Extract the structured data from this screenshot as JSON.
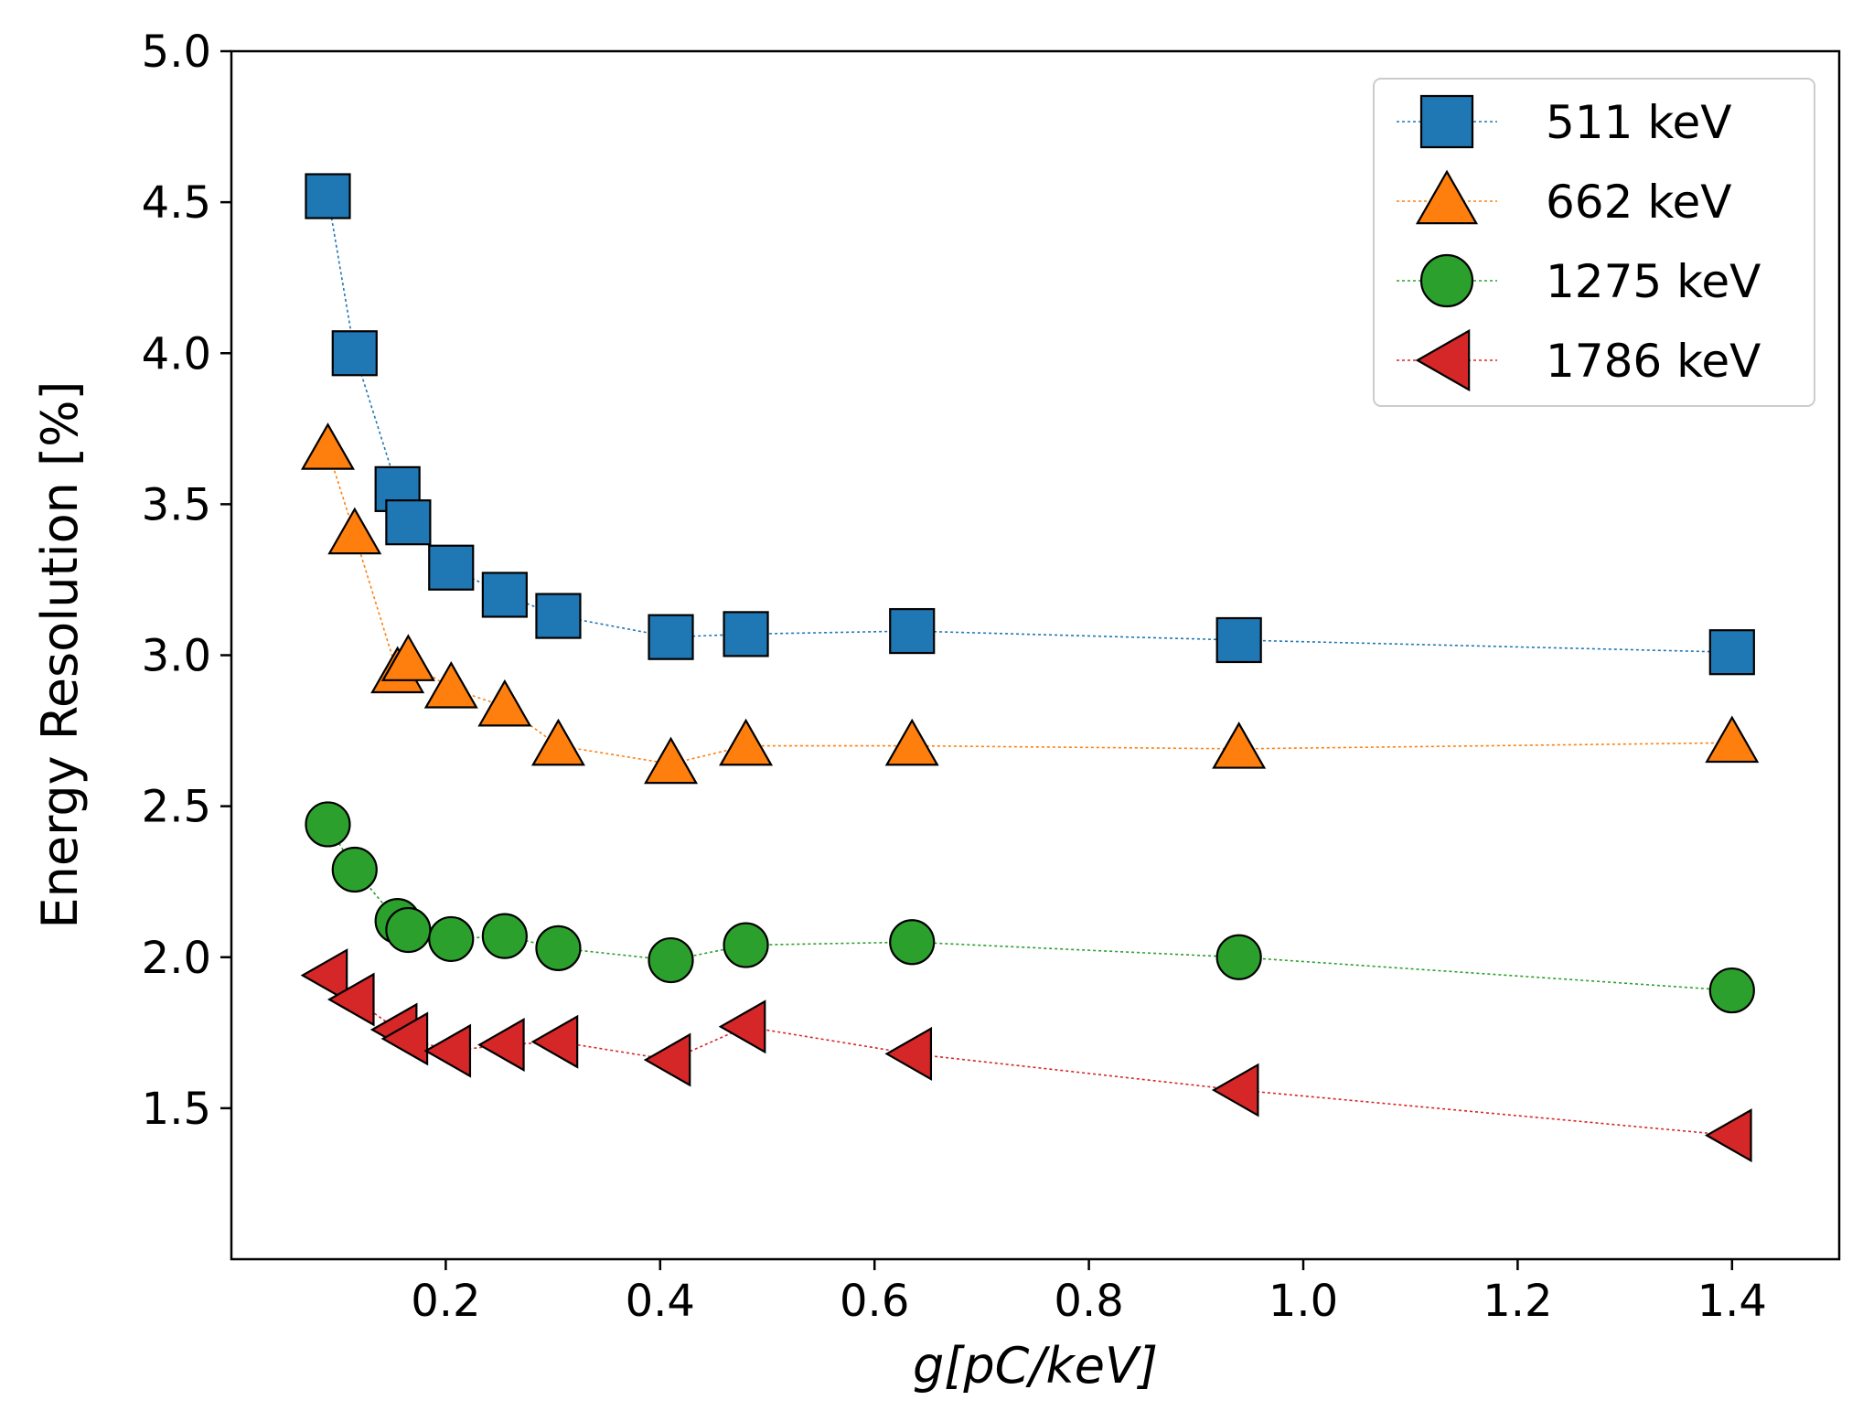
{
  "chart_data": {
    "type": "scatter",
    "title": "",
    "xlabel": "g[pC/keV]",
    "ylabel": "Energy Resolution [%]",
    "xlim": [
      0.0,
      1.5
    ],
    "ylim": [
      1.0,
      5.0
    ],
    "x_ticks": [
      0.2,
      0.4,
      0.6,
      0.8,
      1.0,
      1.2,
      1.4
    ],
    "x_tick_labels": [
      "0.2",
      "0.4",
      "0.6",
      "0.8",
      "1.0",
      "1.2",
      "1.4"
    ],
    "y_ticks": [
      1.5,
      2.0,
      2.5,
      3.0,
      3.5,
      4.0,
      4.5,
      5.0
    ],
    "y_tick_labels": [
      "1.5",
      "2.0",
      "2.5",
      "3.0",
      "3.5",
      "4.0",
      "4.5",
      "5.0"
    ],
    "grid": false,
    "legend_position": "top-right",
    "series": [
      {
        "name": "511 keV",
        "marker": "square",
        "color": "#1f77b4",
        "x": [
          0.09,
          0.115,
          0.155,
          0.165,
          0.205,
          0.255,
          0.305,
          0.41,
          0.48,
          0.635,
          0.94,
          1.4
        ],
        "y": [
          4.52,
          4.0,
          3.55,
          3.44,
          3.29,
          3.2,
          3.13,
          3.06,
          3.07,
          3.08,
          3.05,
          3.01
        ]
      },
      {
        "name": "662 keV",
        "marker": "triangle-up",
        "color": "#ff7f0e",
        "x": [
          0.09,
          0.115,
          0.155,
          0.165,
          0.205,
          0.255,
          0.305,
          0.41,
          0.48,
          0.635,
          0.94,
          1.4
        ],
        "y": [
          3.68,
          3.4,
          2.94,
          2.98,
          2.89,
          2.83,
          2.7,
          2.64,
          2.7,
          2.7,
          2.69,
          2.71
        ]
      },
      {
        "name": "1275 keV",
        "marker": "circle",
        "color": "#2ca02c",
        "x": [
          0.09,
          0.115,
          0.155,
          0.165,
          0.205,
          0.255,
          0.305,
          0.41,
          0.48,
          0.635,
          0.94,
          1.4
        ],
        "y": [
          2.44,
          2.29,
          2.12,
          2.09,
          2.06,
          2.07,
          2.03,
          1.99,
          2.04,
          2.05,
          2.0,
          1.89
        ]
      },
      {
        "name": "1786 keV",
        "marker": "triangle-left",
        "color": "#d62728",
        "x": [
          0.09,
          0.115,
          0.155,
          0.165,
          0.205,
          0.255,
          0.305,
          0.41,
          0.48,
          0.635,
          0.94,
          1.4
        ],
        "y": [
          1.94,
          1.86,
          1.76,
          1.73,
          1.69,
          1.71,
          1.72,
          1.66,
          1.77,
          1.68,
          1.56,
          1.41
        ]
      }
    ]
  }
}
